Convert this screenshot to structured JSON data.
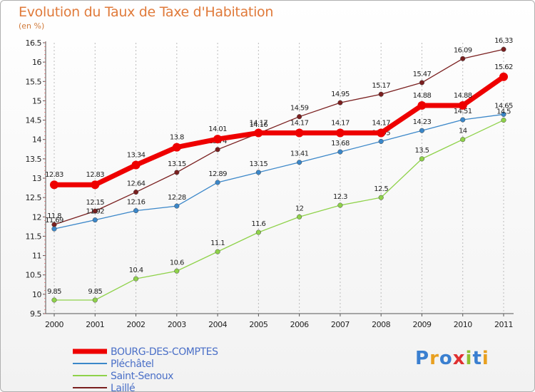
{
  "chart_data": {
    "type": "line",
    "title": "Evolution du Taux de Taxe d'Habitation",
    "subtitle": "(en %)",
    "x": [
      "2000",
      "2001",
      "2002",
      "2003",
      "2004",
      "2005",
      "2006",
      "2007",
      "2008",
      "2009",
      "2010",
      "2011"
    ],
    "ylim": [
      9.5,
      16.5
    ],
    "yticks": [
      "9.5",
      "10",
      "10.5",
      "11",
      "11.5",
      "12",
      "12.5",
      "13",
      "13.5",
      "14",
      "14.5",
      "15",
      "15.5",
      "16",
      "16.5"
    ],
    "grid": "vertical dashed",
    "legend_position": "bottom-left",
    "series": [
      {
        "name": "Laillé",
        "color": "#7a1f1f",
        "values": [
          11.8,
          12.15,
          12.64,
          13.15,
          13.74,
          14.16,
          14.59,
          14.95,
          15.17,
          15.47,
          16.09,
          16.33
        ],
        "labels": [
          "11.8",
          "12.15",
          "12.64",
          "13.15",
          "13.74",
          "14.16",
          "14.59",
          "14.95",
          "15.17",
          "15.47",
          "16.09",
          "16.33"
        ]
      },
      {
        "name": "Pléchâtel",
        "color": "#3b87c9",
        "values": [
          11.69,
          11.92,
          12.16,
          12.28,
          12.89,
          13.15,
          13.41,
          13.68,
          13.95,
          14.23,
          14.51,
          14.65
        ],
        "labels": [
          "11.69",
          "11.92",
          "12.16",
          "12.28",
          "12.89",
          "13.15",
          "13.41",
          "13.68",
          "13.95",
          "14.23",
          "14.51",
          "14.65"
        ]
      },
      {
        "name": "Saint-Senoux",
        "color": "#8fd24a",
        "values": [
          9.85,
          9.85,
          10.4,
          10.6,
          11.1,
          11.6,
          12,
          12.3,
          12.5,
          13.5,
          14,
          14.5
        ],
        "labels": [
          "9.85",
          "9.85",
          "10.4",
          "10.6",
          "11.1",
          "11.6",
          "12",
          "12.3",
          "12.5",
          "13.5",
          "14",
          "14.5"
        ]
      },
      {
        "name": "BOURG-DES-COMPTES",
        "color": "#ee0000",
        "values": [
          12.83,
          12.83,
          13.34,
          13.8,
          14.01,
          14.17,
          14.17,
          14.17,
          14.17,
          14.88,
          14.88,
          15.62
        ],
        "labels": [
          "12.83",
          "12.83",
          "13.34",
          "13.8",
          "14.01",
          "14.17",
          "14.17",
          "14.17",
          "14.17",
          "14.88",
          "14.88",
          "15.62"
        ]
      }
    ],
    "legend_order": [
      "BOURG-DES-COMPTES",
      "Pléchâtel",
      "Saint-Senoux",
      "Laillé"
    ]
  },
  "logo": {
    "text": "Proxiti"
  }
}
